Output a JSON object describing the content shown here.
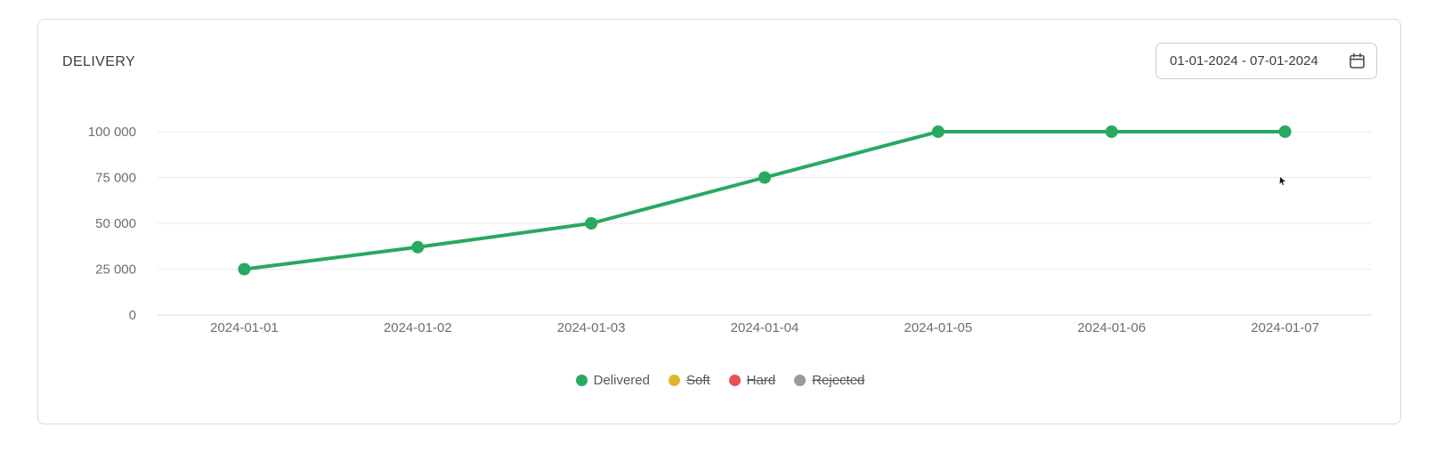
{
  "header": {
    "title": "DELIVERY"
  },
  "date_picker": {
    "value": "01-01-2024 - 07-01-2024",
    "icon": "calendar-icon"
  },
  "colors": {
    "delivered": "#27a960",
    "soft": "#e0b52e",
    "hard": "#e95252",
    "rejected": "#9a9a9a",
    "grid_line": "#ebebeb",
    "axis_line": "#dcdcdc",
    "axis_text": "#6e6e6e",
    "title_text": "#3c3c3c",
    "card_border": "#d9d9d9"
  },
  "chart_data": {
    "type": "line",
    "title": "DELIVERY",
    "x": [
      "2024-01-01",
      "2024-01-02",
      "2024-01-03",
      "2024-01-04",
      "2024-01-05",
      "2024-01-06",
      "2024-01-07"
    ],
    "series": [
      {
        "name": "Delivered",
        "color": "#27a960",
        "hidden": false,
        "values": [
          25000,
          37000,
          50000,
          75000,
          100000,
          100000,
          100000
        ]
      },
      {
        "name": "Soft",
        "color": "#e0b52e",
        "hidden": true,
        "values": []
      },
      {
        "name": "Hard",
        "color": "#e95252",
        "hidden": true,
        "values": []
      },
      {
        "name": "Rejected",
        "color": "#9a9a9a",
        "hidden": true,
        "values": []
      }
    ],
    "ylim": [
      0,
      100000
    ],
    "yticks": [
      0,
      25000,
      50000,
      75000,
      100000
    ],
    "ytick_labels": [
      "0",
      "25 000",
      "50 000",
      "75 000",
      "100 000"
    ],
    "grid": true,
    "legend_position": "bottom",
    "marker": "circle"
  }
}
